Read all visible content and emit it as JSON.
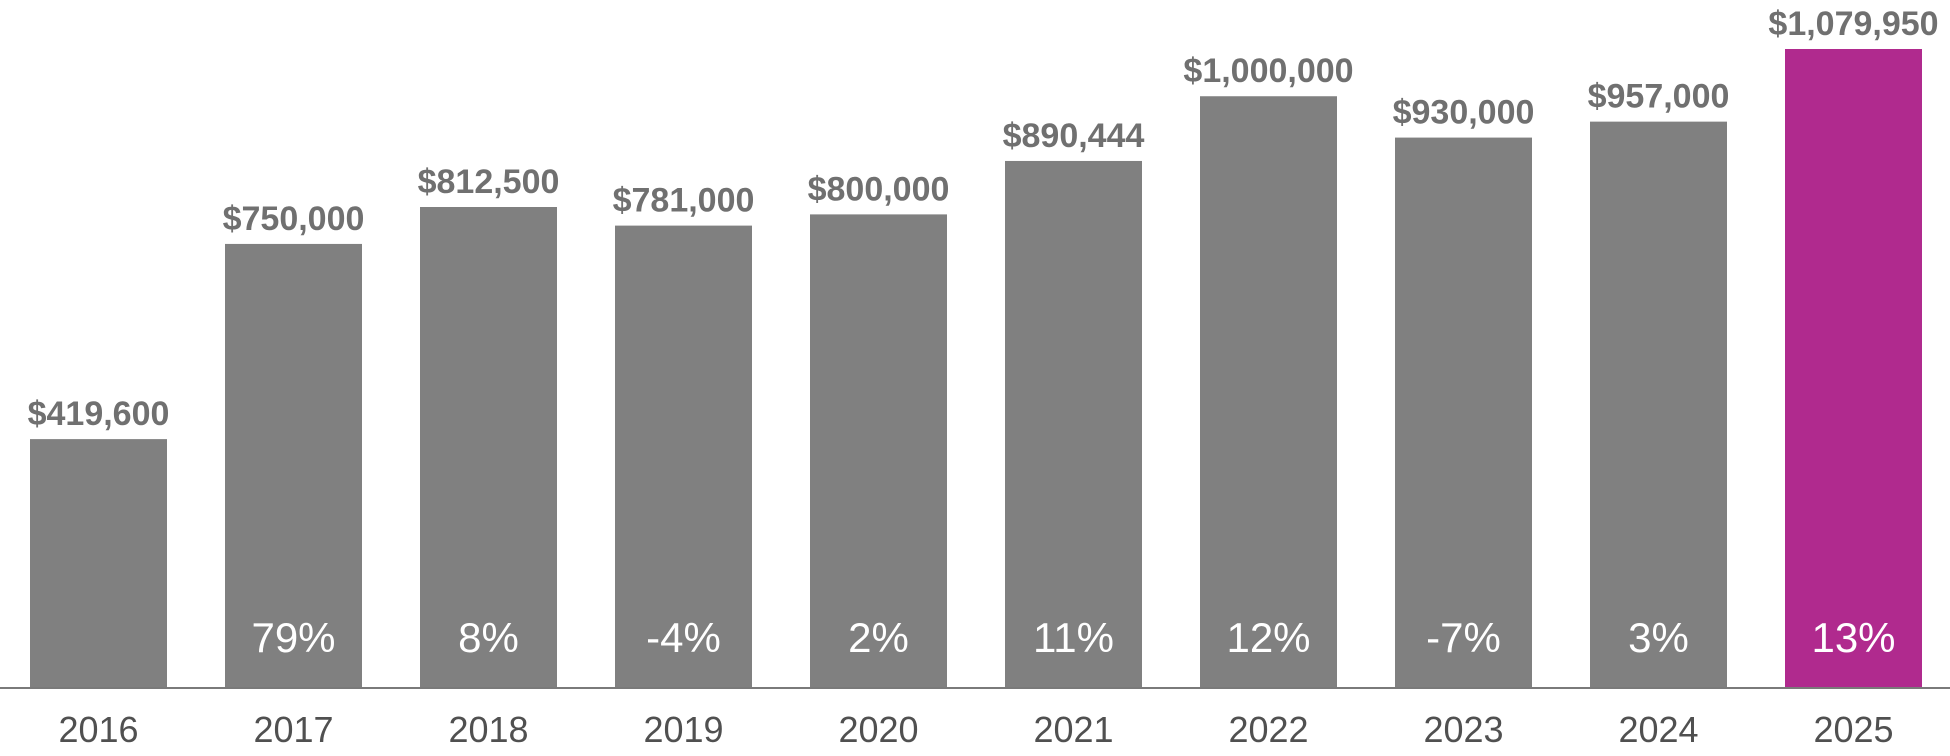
{
  "chart_data": {
    "type": "bar",
    "categories": [
      "2016",
      "2017",
      "2018",
      "2019",
      "2020",
      "2021",
      "2022",
      "2023",
      "2024",
      "2025"
    ],
    "values": [
      419600,
      750000,
      812500,
      781000,
      800000,
      890444,
      1000000,
      930000,
      957000,
      1079950
    ],
    "value_labels": [
      "$419,600",
      "$750,000",
      "$812,500",
      "$781,000",
      "$800,000",
      "$890,444",
      "$1,000,000",
      "$930,000",
      "$957,000",
      "$1,079,950"
    ],
    "change_labels": [
      "",
      "79%",
      "8%",
      "-4%",
      "2%",
      "11%",
      "12%",
      "-7%",
      "3%",
      "13%"
    ],
    "title": "",
    "xlabel": "",
    "ylabel": "",
    "ylim": [
      0,
      1079950
    ],
    "grid": false,
    "legend": "none",
    "highlight_index": 9
  },
  "colors": {
    "bar": "#808080",
    "highlight_bar": "#B02A8E",
    "value_text": "#707070",
    "change_text": "#ffffff",
    "year_text": "#505050",
    "axis": "#7a7a7a"
  }
}
